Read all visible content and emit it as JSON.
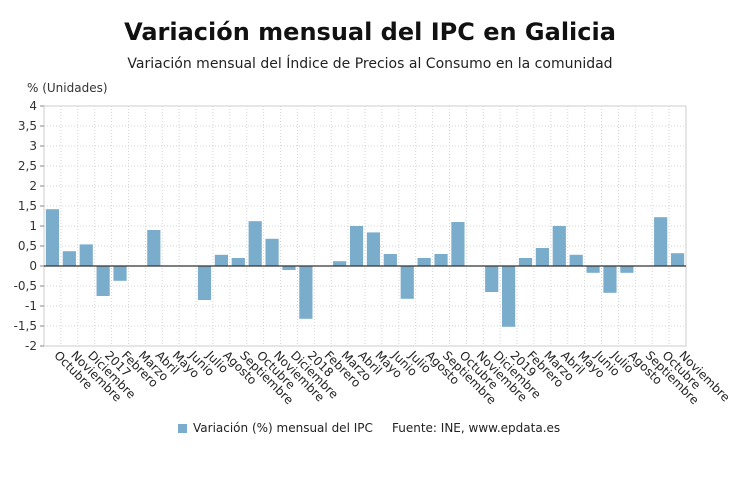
{
  "chart_data": {
    "type": "bar",
    "title": "Variación mensual del IPC en Galicia",
    "subtitle": "Variación mensual del Índice de Precios al Consumo en la comunidad",
    "ylabel": "% (Unidades)",
    "ylim": [
      -2,
      4
    ],
    "yticks": [
      "-2",
      "-1,5",
      "-1",
      "-0,5",
      "0",
      "0,5",
      "1",
      "1,5",
      "2",
      "2,5",
      "3",
      "3,5",
      "4"
    ],
    "grid": true,
    "legend_position": "bottom",
    "categories": [
      "Octubre",
      "Noviembre",
      "Diciembre",
      "2017",
      "Febrero",
      "Marzo",
      "Abril",
      "Mayo",
      "Junio",
      "Julio",
      "Agosto",
      "Septiembre",
      "Octubre",
      "Noviembre",
      "Diciembre",
      "2018",
      "Febrero",
      "Marzo",
      "Abril",
      "Mayo",
      "Junio",
      "Julio",
      "Agosto",
      "Septiembre",
      "Octubre",
      "Noviembre",
      "Diciembre",
      "2019",
      "Febrero",
      "Marzo",
      "Abril",
      "Mayo",
      "Junio",
      "Julio",
      "Agosto",
      "Septiembre",
      "Octubre",
      "Noviembre"
    ],
    "series": [
      {
        "name": "Variación (%) mensual del IPC",
        "color": "#7aaccc",
        "values": [
          1.42,
          0.37,
          0.54,
          -0.75,
          -0.37,
          0.0,
          0.9,
          0.0,
          0.0,
          -0.85,
          0.28,
          0.2,
          1.12,
          0.68,
          -0.1,
          -1.32,
          0.0,
          0.12,
          1.0,
          0.84,
          0.3,
          -0.82,
          0.2,
          0.3,
          1.1,
          0.0,
          -0.65,
          -1.52,
          0.2,
          0.45,
          1.0,
          0.28,
          -0.17,
          -0.67,
          -0.17,
          0.0,
          1.22,
          0.32
        ]
      }
    ]
  },
  "footer": {
    "legend_label": "Variación (%) mensual del IPC",
    "source": "Fuente: INE, www.epdata.es"
  }
}
